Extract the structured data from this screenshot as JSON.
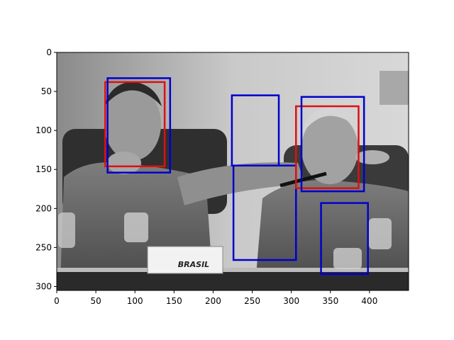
{
  "chart_data": {
    "type": "image-with-boxes",
    "image_extent": {
      "width": 450,
      "height": 305
    },
    "xlim": [
      0,
      450
    ],
    "ylim": [
      305,
      0
    ],
    "x_ticks": [
      0,
      50,
      100,
      150,
      200,
      250,
      300,
      350,
      400
    ],
    "y_ticks": [
      0,
      50,
      100,
      150,
      200,
      250,
      300
    ],
    "photo_label": "BRASIL",
    "colors": {
      "red_box": "#dd1111",
      "blue_box": "#0000cc",
      "axis": "#000000"
    },
    "boxes": [
      {
        "color": "red",
        "x0": 62,
        "y0": 38,
        "x1": 138,
        "y1": 146
      },
      {
        "color": "blue",
        "x0": 65,
        "y0": 33,
        "x1": 145,
        "y1": 154
      },
      {
        "color": "blue",
        "x0": 224,
        "y0": 55,
        "x1": 284,
        "y1": 145
      },
      {
        "color": "blue",
        "x0": 226,
        "y0": 145,
        "x1": 306,
        "y1": 266
      },
      {
        "color": "red",
        "x0": 306,
        "y0": 69,
        "x1": 386,
        "y1": 174
      },
      {
        "color": "blue",
        "x0": 313,
        "y0": 57,
        "x1": 393,
        "y1": 178
      },
      {
        "color": "blue",
        "x0": 338,
        "y0": 193,
        "x1": 398,
        "y1": 284
      }
    ]
  }
}
